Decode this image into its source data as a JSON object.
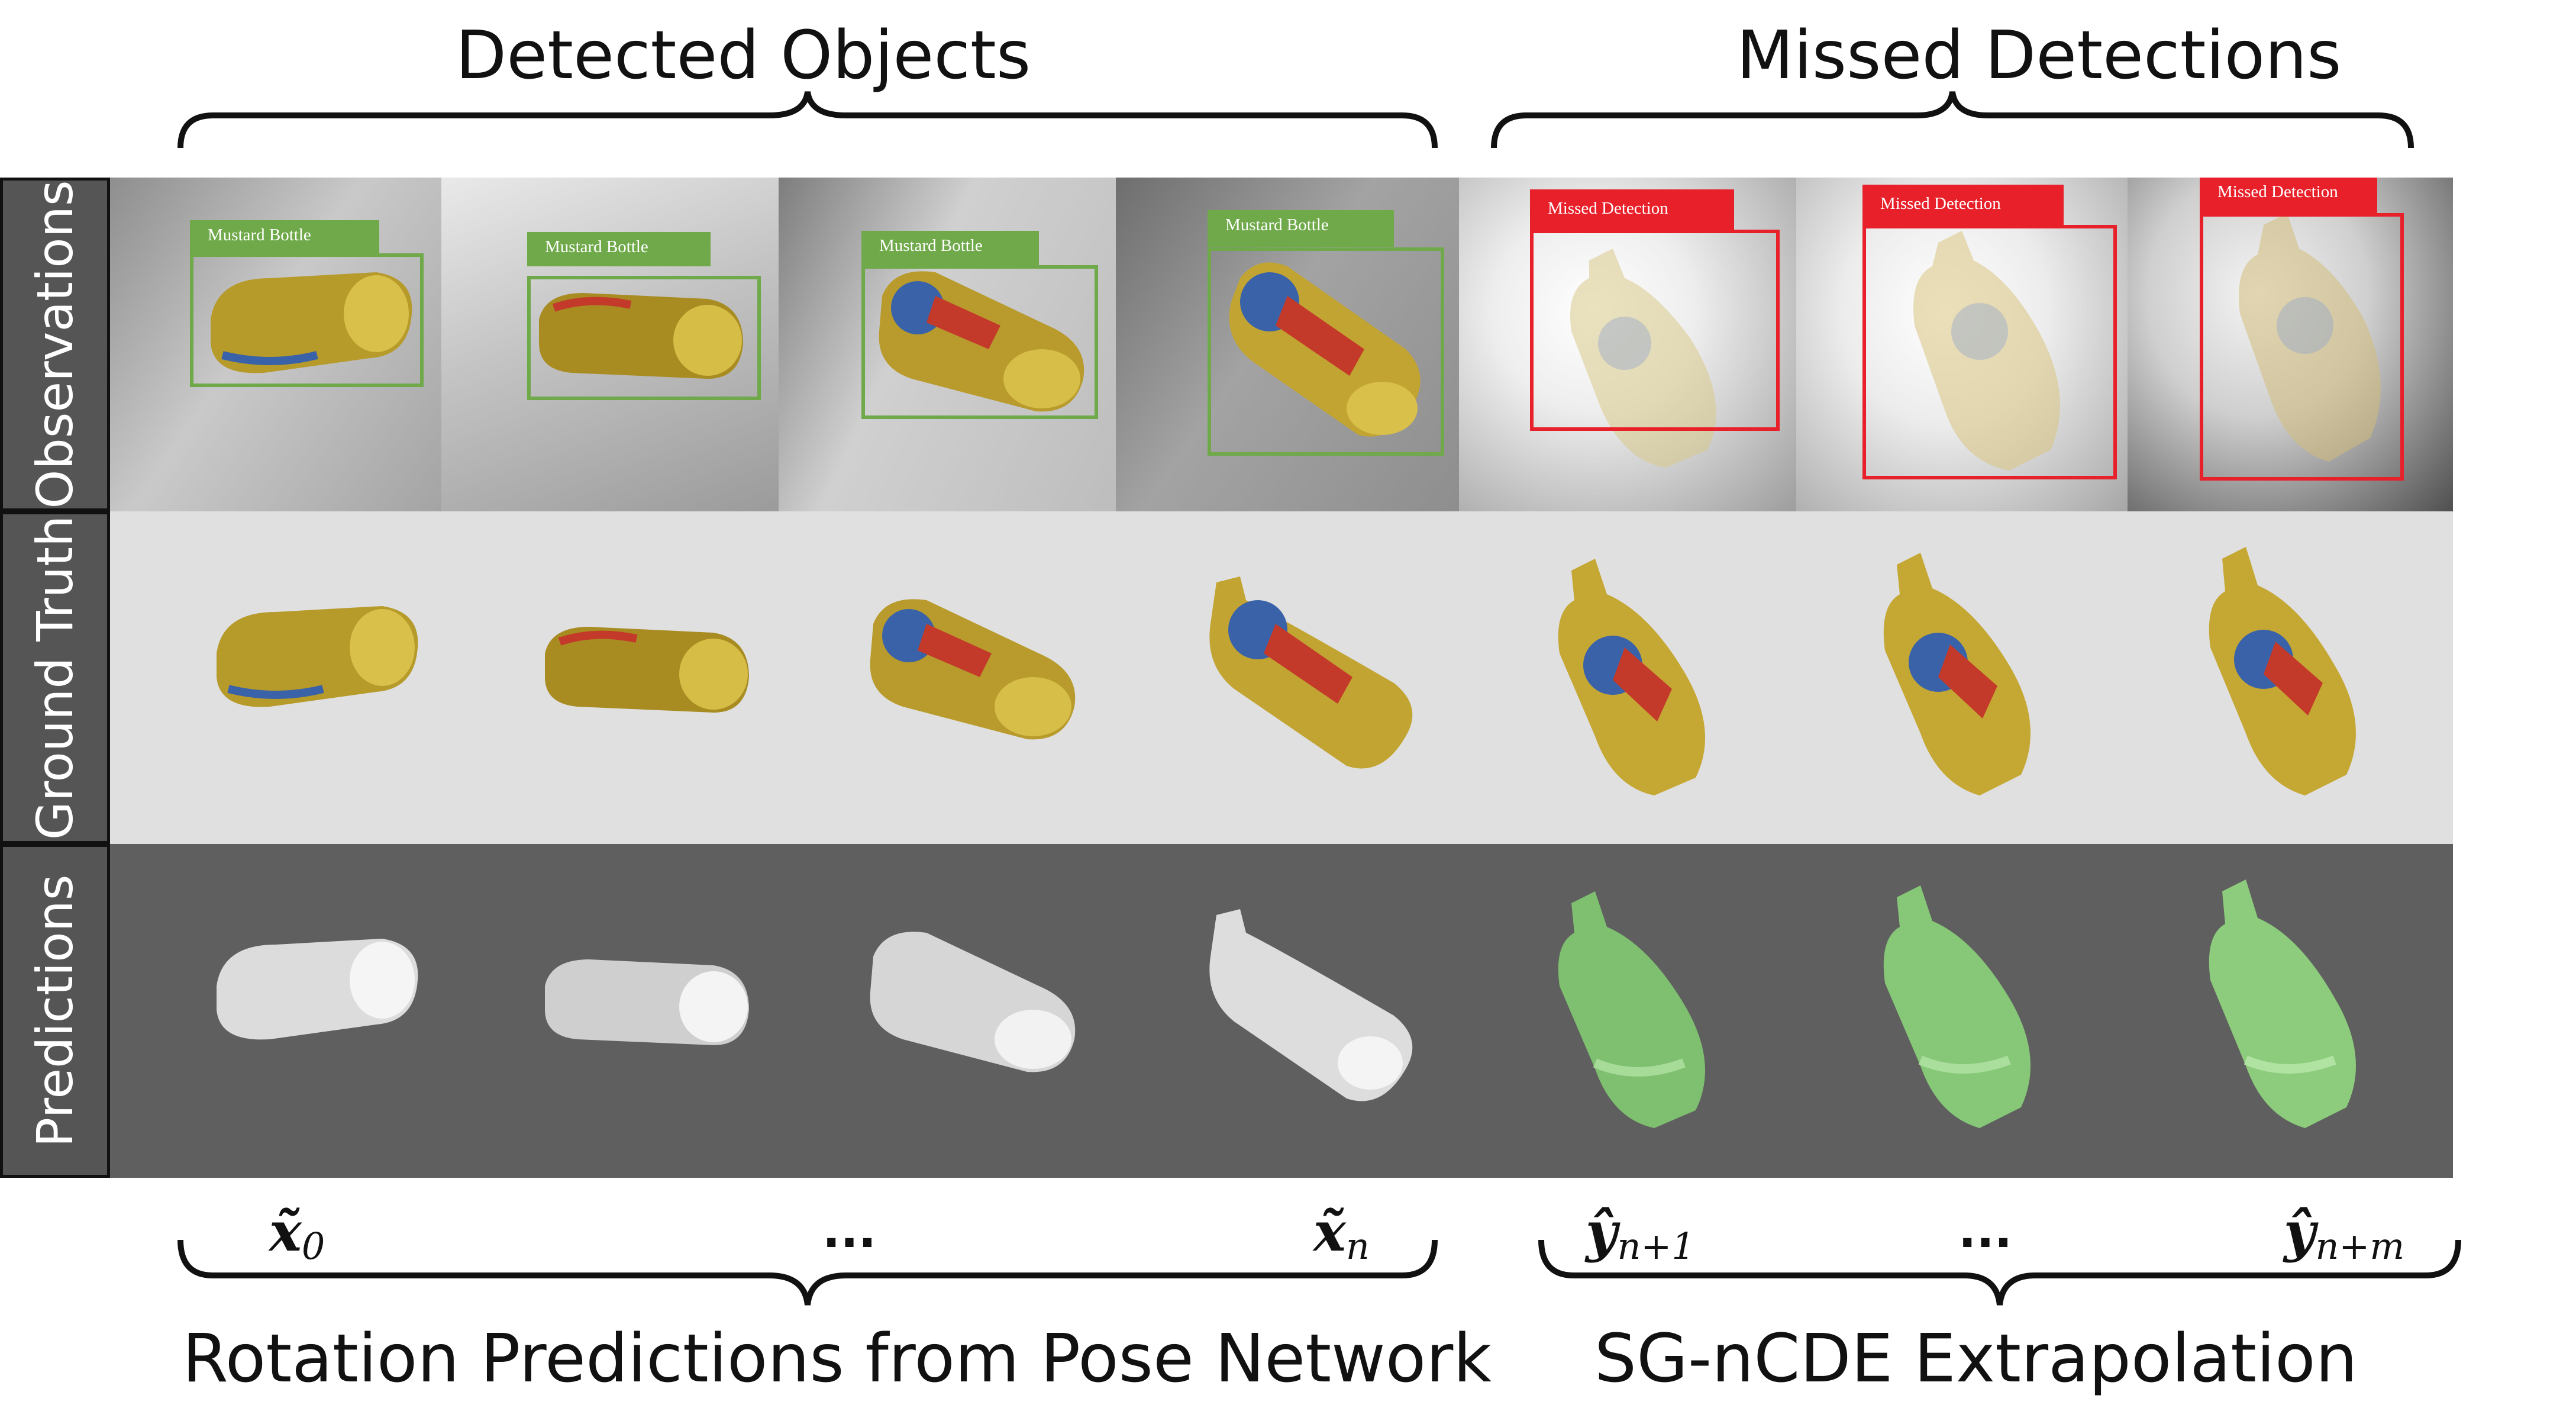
{
  "headers": {
    "detected": "Detected Objects",
    "missed": "Missed Detections"
  },
  "row_labels": {
    "observations": "Observations",
    "ground_truth": "Ground Truth",
    "predictions": "Predictions"
  },
  "box_labels": {
    "detected": "Mustard Bottle",
    "missed": "Missed Detection"
  },
  "math_labels": {
    "x0_base": "x̃",
    "x0_sub": "0",
    "dots_left": "...",
    "xn_base": "x̃",
    "xn_sub": "n",
    "y1_base": "ŷ",
    "y1_sub": "n+1",
    "dots_right": "...",
    "ym_base": "ŷ",
    "ym_sub": "n+m"
  },
  "footers": {
    "left": "Rotation Predictions from Pose Network",
    "right": "SG-nCDE Extrapolation"
  },
  "colors": {
    "detected_box": "#6fa94a",
    "missed_box": "#e8202a",
    "prediction_detected": "#f0f0f0",
    "prediction_extrapolated": "#8ccc7c",
    "mustard": "#c9a832"
  }
}
